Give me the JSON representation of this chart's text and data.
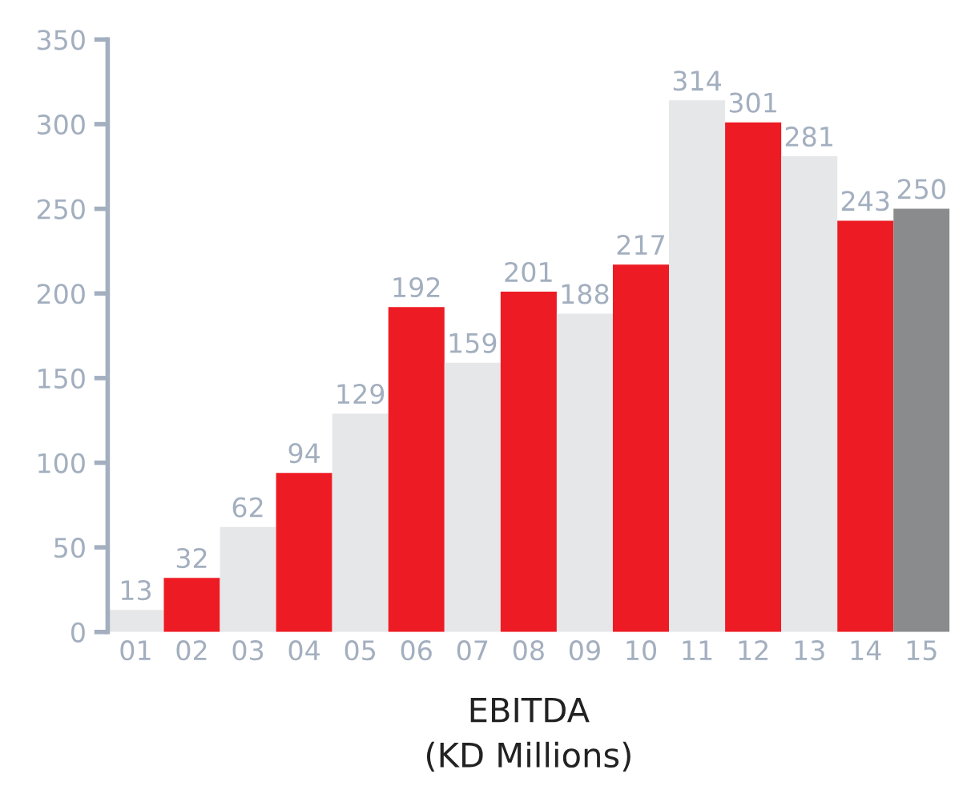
{
  "chart_data": {
    "type": "bar",
    "xlabel": "EBITDA\n(KD Millions)",
    "categories": [
      "01",
      "02",
      "03",
      "04",
      "05",
      "06",
      "07",
      "08",
      "09",
      "10",
      "11",
      "12",
      "13",
      "14",
      "15"
    ],
    "values": [
      13,
      32,
      62,
      94,
      129,
      192,
      159,
      201,
      188,
      217,
      314,
      301,
      281,
      243,
      250
    ],
    "colors": [
      "#e6e7e9",
      "#ed1c24",
      "#e6e7e9",
      "#ed1c24",
      "#e6e7e9",
      "#ed1c24",
      "#e6e7e9",
      "#ed1c24",
      "#e6e7e9",
      "#ed1c24",
      "#e6e7e9",
      "#ed1c24",
      "#e6e7e9",
      "#ed1c24",
      "#8a8b8d"
    ],
    "ylim": [
      0,
      350
    ],
    "yticks": [
      0,
      50,
      100,
      150,
      200,
      250,
      300,
      350
    ],
    "grid": false,
    "data_labels": true
  }
}
